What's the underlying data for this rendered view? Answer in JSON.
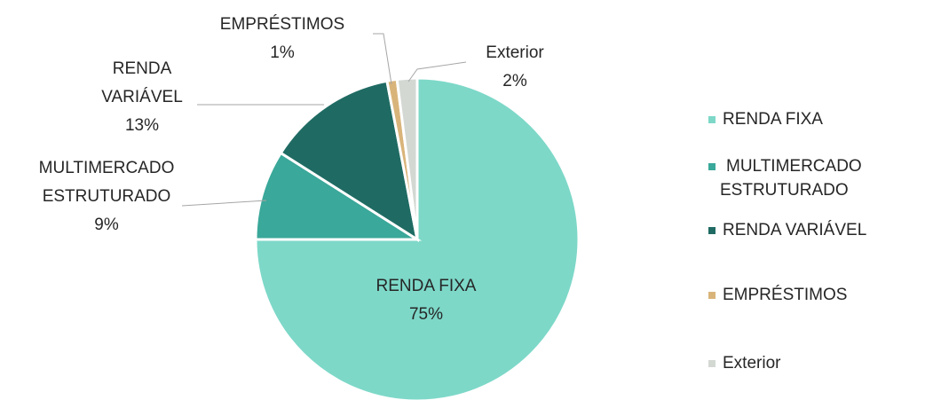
{
  "chart_data": {
    "type": "pie",
    "categories": [
      "RENDA FIXA",
      "MULTIMERCADO ESTRUTURADO",
      "RENDA VARIÁVEL",
      "EMPRÉSTIMOS",
      "Exterior"
    ],
    "values": [
      75,
      9,
      13,
      1,
      2
    ],
    "value_labels": [
      "75%",
      "9%",
      "13%",
      "1%",
      "2%"
    ],
    "colors": [
      "#7dd8c8",
      "#3aa89a",
      "#1f6b63",
      "#d9b47a",
      "#d3d8d3"
    ],
    "legend": "right"
  }
}
